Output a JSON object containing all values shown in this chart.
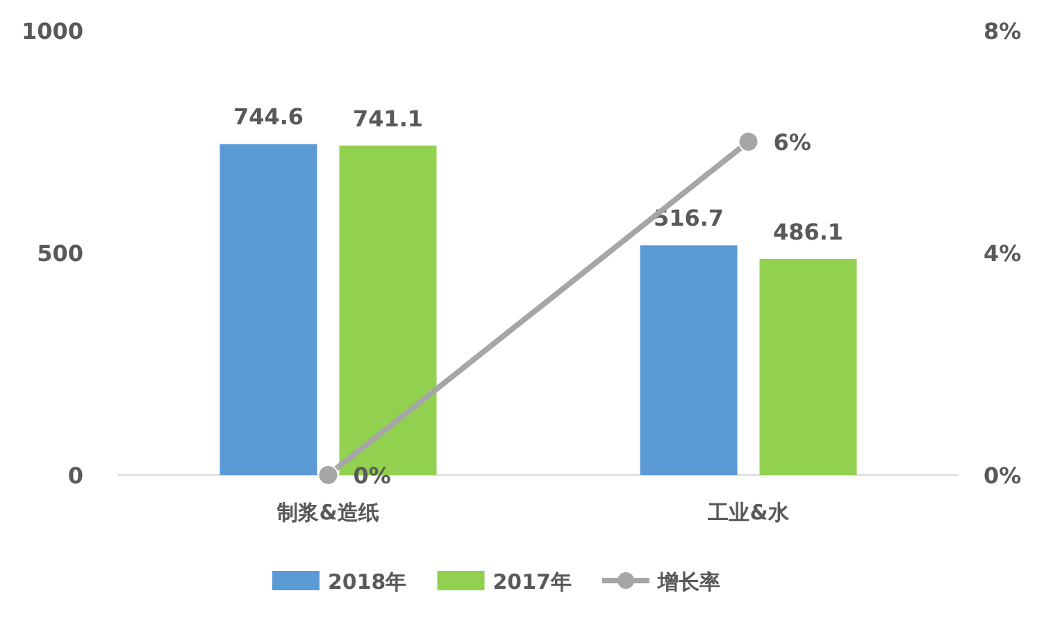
{
  "chart_data": {
    "type": "bar",
    "categories": [
      "制浆&造纸",
      "工业&水"
    ],
    "series": [
      {
        "name": "2018年",
        "color": "#5b9bd5",
        "values": [
          744.6,
          516.7
        ],
        "value_labels": [
          "744.6",
          "516.7"
        ]
      },
      {
        "name": "2017年",
        "color": "#92d050",
        "values": [
          741.1,
          486.1
        ],
        "value_labels": [
          "741.1",
          "486.1"
        ]
      },
      {
        "name": "增长率",
        "type": "line",
        "axis": "y2",
        "color": "#a6a6a6",
        "marker": "circle",
        "values": [
          0,
          6
        ],
        "value_labels": [
          "0%",
          "6%"
        ]
      }
    ],
    "ylim": [
      0,
      1000
    ],
    "yticks": [
      0,
      500,
      1000
    ],
    "y2lim": [
      0,
      8
    ],
    "y2ticks": [
      {
        "value": 0,
        "label": "0%"
      },
      {
        "value": 4,
        "label": "4%"
      },
      {
        "value": 8,
        "label": "8%"
      }
    ],
    "grid": false,
    "legend": "bottom"
  }
}
